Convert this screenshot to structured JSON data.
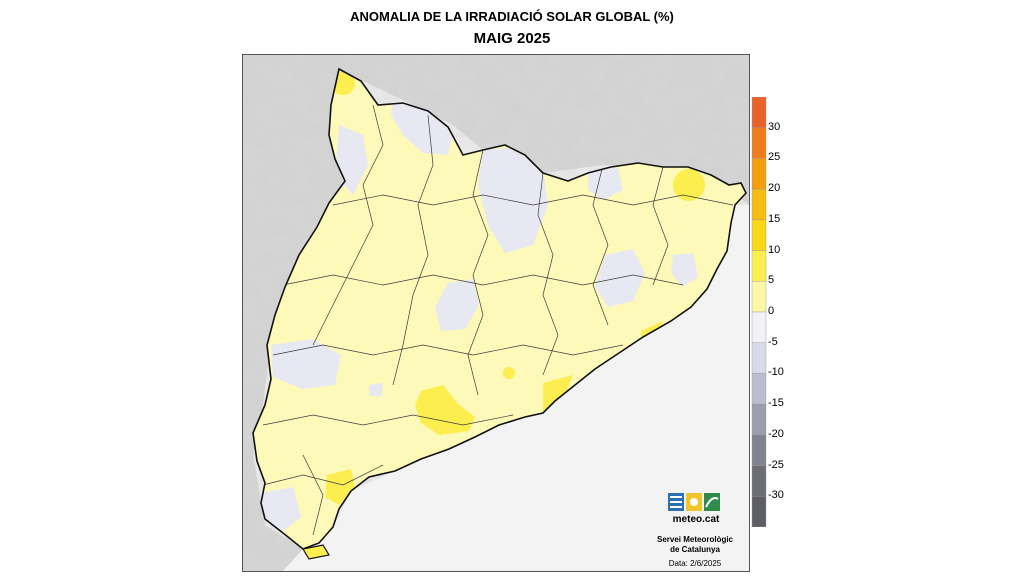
{
  "map": {
    "title": "ANOMALIA DE LA IRRADIACIÓ SOLAR GLOBAL (%)",
    "subtitle": "MAIG 2025"
  },
  "legend": {
    "ticks": [
      "30",
      "25",
      "20",
      "15",
      "10",
      "5",
      "0",
      "-5",
      "-10",
      "-15",
      "-20",
      "-25",
      "-30"
    ],
    "bands": [
      {
        "range": "30 to 35",
        "color": "#e8632a"
      },
      {
        "range": "25 to 30",
        "color": "#ef7d1e"
      },
      {
        "range": "20 to 25",
        "color": "#f59d0f"
      },
      {
        "range": "15 to 20",
        "color": "#f8bb10"
      },
      {
        "range": "10 to 15",
        "color": "#f9d719"
      },
      {
        "range": "5 to 10",
        "color": "#fbee4e"
      },
      {
        "range": "0 to 5",
        "color": "#fdf8a6"
      },
      {
        "range": "-5 to 0",
        "color": "#f1f1f7"
      },
      {
        "range": "-10 to -5",
        "color": "#d9d9e8"
      },
      {
        "range": "-15 to -10",
        "color": "#bdbdcf"
      },
      {
        "range": "-20 to -15",
        "color": "#9d9dae"
      },
      {
        "range": "-25 to -20",
        "color": "#83838f"
      },
      {
        "range": "-30 to -25",
        "color": "#6d6d76"
      },
      {
        "range": "-35 to -30",
        "color": "#5e5e66"
      }
    ]
  },
  "branding": {
    "logo_text": "meteo.cat",
    "organization_line1": "Servei Meteorològic",
    "organization_line2": "de Catalunya",
    "date_label": "Data: 2/6/2025"
  },
  "colors": {
    "region_base": "#fdf9b8",
    "anomaly_positive": "#fbee4e",
    "anomaly_negative": "#e8e8f2",
    "relief": "#c8c8c8"
  }
}
